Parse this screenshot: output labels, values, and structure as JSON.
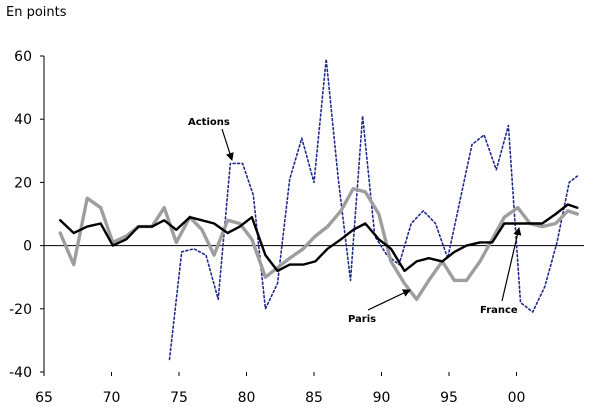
{
  "chart_data": {
    "type": "line",
    "ylabel": "En points",
    "xlim": [
      65,
      2005
    ],
    "ylim": [
      -40,
      60
    ],
    "x_ticks": [
      {
        "value": 1965,
        "label": "65"
      },
      {
        "value": 1970,
        "label": "70"
      },
      {
        "value": 1975,
        "label": "75"
      },
      {
        "value": 1980,
        "label": "80"
      },
      {
        "value": 1985,
        "label": "85"
      },
      {
        "value": 1990,
        "label": "90"
      },
      {
        "value": 1995,
        "label": "95"
      },
      {
        "value": 2000,
        "label": "00"
      }
    ],
    "y_ticks": [
      {
        "value": 60,
        "label": "60"
      },
      {
        "value": 40,
        "label": "40"
      },
      {
        "value": 20,
        "label": "20"
      },
      {
        "value": 0,
        "label": "0"
      },
      {
        "value": -20,
        "label": "-20"
      },
      {
        "value": -40,
        "label": "-40"
      }
    ],
    "grid": false,
    "series": [
      {
        "name": "Actions",
        "color": "#1f2a8c",
        "style": "dotted",
        "x": [
          1974.3,
          1975.2,
          1976.1,
          1977.0,
          1977.9,
          1978.8,
          1979.7,
          1980.5,
          1981.4,
          1982.3,
          1983.2,
          1984.1,
          1985.0,
          1985.9,
          1986.8,
          1987.7,
          1988.6,
          1989.5,
          1990.4,
          1991.3,
          1992.2,
          1993.1,
          1994.0,
          1994.9,
          1995.8,
          1996.7,
          1997.6,
          1998.5,
          1999.4,
          2000.3,
          2001.2,
          2002.1,
          2003.0,
          2003.9,
          2004.5
        ],
        "y": [
          -36,
          -2,
          -1,
          -3,
          -17,
          26,
          26,
          16,
          -20,
          -12,
          21,
          34,
          20,
          59,
          21,
          -11,
          41,
          3,
          -3,
          -6,
          7,
          11,
          7,
          -4,
          14,
          32,
          35,
          24,
          38,
          -18,
          -21,
          -13,
          1,
          20,
          22
        ]
      },
      {
        "name": "Paris",
        "color": "#9e9e9e",
        "style": "solid",
        "x": [
          1966.2,
          1967.2,
          1968.2,
          1969.2,
          1970.1,
          1971.1,
          1972.0,
          1973.0,
          1973.9,
          1974.8,
          1975.8,
          1976.7,
          1977.6,
          1978.6,
          1979.5,
          1980.4,
          1981.4,
          1982.3,
          1983.2,
          1984.2,
          1985.1,
          1986.0,
          1987.0,
          1987.9,
          1988.8,
          1989.8,
          1990.7,
          1991.7,
          1992.6,
          1993.5,
          1994.5,
          1995.4,
          1996.3,
          1997.3,
          1998.2,
          1999.1,
          2000.1,
          2001.0,
          2001.9,
          2002.9,
          2003.8,
          2004.5
        ],
        "y": [
          4,
          -6,
          15,
          12,
          1,
          3,
          6,
          6,
          12,
          1,
          9,
          5,
          -3,
          8,
          7,
          2,
          -10,
          -7,
          -4,
          -1,
          3,
          6,
          11,
          18,
          17,
          10,
          -5,
          -12,
          -17,
          -11,
          -5,
          -11,
          -11,
          -5,
          2,
          9,
          12,
          7,
          6,
          7,
          11,
          10
        ]
      },
      {
        "name": "France",
        "color": "#000000",
        "style": "solid",
        "x": [
          1966.2,
          1967.2,
          1968.2,
          1969.2,
          1970.1,
          1971.1,
          1972.0,
          1973.0,
          1973.9,
          1974.8,
          1975.8,
          1976.7,
          1977.6,
          1978.6,
          1979.5,
          1980.4,
          1981.4,
          1982.3,
          1983.2,
          1984.2,
          1985.1,
          1986.0,
          1987.0,
          1987.9,
          1988.8,
          1989.8,
          1990.7,
          1991.7,
          1992.6,
          1993.5,
          1994.5,
          1995.4,
          1996.3,
          1997.3,
          1998.2,
          1999.1,
          2000.1,
          2001.0,
          2001.9,
          2002.9,
          2003.8,
          2004.5
        ],
        "y": [
          8,
          4,
          6,
          7,
          0,
          2,
          6,
          6,
          8,
          5,
          9,
          8,
          7,
          4,
          6,
          9,
          -3,
          -8,
          -6,
          -6,
          -5,
          -1,
          2,
          5,
          7,
          2,
          -1,
          -8,
          -5,
          -4,
          -5,
          -2,
          0,
          1,
          1,
          7,
          7,
          7,
          7,
          10,
          13,
          12
        ]
      }
    ],
    "annotations": [
      {
        "text": "Actions",
        "series": "Actions"
      },
      {
        "text": "Paris",
        "series": "Paris"
      },
      {
        "text": "France",
        "series": "France"
      }
    ]
  }
}
